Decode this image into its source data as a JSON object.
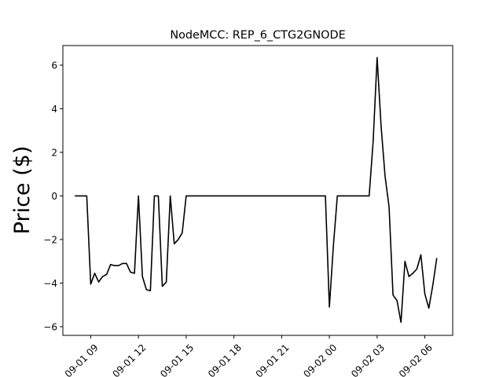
{
  "chart_data": {
    "type": "line",
    "title": "NodeMCC: REP_6_CTG2GNODE",
    "xlabel": "",
    "ylabel": "Price ($)",
    "ylim": [
      -6.4,
      6.9
    ],
    "xlim": [
      "2022-09-01 07:15",
      "2022-09-02 07:45"
    ],
    "grid": false,
    "line_color": "#000000",
    "x_ticks": [
      {
        "x": "2022-09-01 09:00",
        "label": "09-01 09"
      },
      {
        "x": "2022-09-01 12:00",
        "label": "09-01 12"
      },
      {
        "x": "2022-09-01 15:00",
        "label": "09-01 15"
      },
      {
        "x": "2022-09-01 18:00",
        "label": "09-01 18"
      },
      {
        "x": "2022-09-01 21:00",
        "label": "09-01 21"
      },
      {
        "x": "2022-09-02 00:00",
        "label": "09-02 00"
      },
      {
        "x": "2022-09-02 03:00",
        "label": "09-02 03"
      },
      {
        "x": "2022-09-02 06:00",
        "label": "09-02 06"
      }
    ],
    "y_ticks": [
      {
        "y": 6,
        "label": "6"
      },
      {
        "y": 4,
        "label": "4"
      },
      {
        "y": 2,
        "label": "2"
      },
      {
        "y": 0,
        "label": "0"
      },
      {
        "y": -2,
        "label": "−2"
      },
      {
        "y": -4,
        "label": "−4"
      },
      {
        "y": -6,
        "label": "−6"
      }
    ],
    "series": [
      {
        "x": [
          "2022-09-01 08:00",
          "2022-09-01 08:15",
          "2022-09-01 08:30",
          "2022-09-01 08:45",
          "2022-09-01 09:00",
          "2022-09-01 09:15",
          "2022-09-01 09:30",
          "2022-09-01 09:45",
          "2022-09-01 10:00",
          "2022-09-01 10:15",
          "2022-09-01 10:30",
          "2022-09-01 10:45",
          "2022-09-01 11:00",
          "2022-09-01 11:15",
          "2022-09-01 11:30",
          "2022-09-01 11:45",
          "2022-09-01 12:00",
          "2022-09-01 12:15",
          "2022-09-01 12:30",
          "2022-09-01 12:45",
          "2022-09-01 13:00",
          "2022-09-01 13:15",
          "2022-09-01 13:30",
          "2022-09-01 13:45",
          "2022-09-01 14:00",
          "2022-09-01 14:15",
          "2022-09-01 14:30",
          "2022-09-01 14:45",
          "2022-09-01 15:00",
          "2022-09-01 16:00",
          "2022-09-01 17:00",
          "2022-09-01 18:00",
          "2022-09-01 19:00",
          "2022-09-01 20:00",
          "2022-09-01 21:00",
          "2022-09-01 22:00",
          "2022-09-01 23:00",
          "2022-09-01 23:45",
          "2022-09-02 00:00",
          "2022-09-02 00:15",
          "2022-09-02 00:30",
          "2022-09-02 00:45",
          "2022-09-02 01:00",
          "2022-09-02 01:15",
          "2022-09-02 01:30",
          "2022-09-02 01:45",
          "2022-09-02 02:00",
          "2022-09-02 02:15",
          "2022-09-02 02:30",
          "2022-09-02 02:45",
          "2022-09-02 03:00",
          "2022-09-02 03:15",
          "2022-09-02 03:30",
          "2022-09-02 03:45",
          "2022-09-02 04:00",
          "2022-09-02 04:15",
          "2022-09-02 04:30",
          "2022-09-02 04:45",
          "2022-09-02 05:00",
          "2022-09-02 05:15",
          "2022-09-02 05:30",
          "2022-09-02 05:45",
          "2022-09-02 06:00",
          "2022-09-02 06:15",
          "2022-09-02 06:30",
          "2022-09-02 06:45"
        ],
        "y": [
          0,
          0,
          0,
          0,
          -4.05,
          -3.55,
          -3.95,
          -3.7,
          -3.6,
          -3.15,
          -3.2,
          -3.2,
          -3.1,
          -3.1,
          -3.5,
          -3.55,
          0,
          -3.7,
          -4.3,
          -4.35,
          0,
          0,
          -4.15,
          -3.95,
          0,
          -2.2,
          -2.0,
          -1.7,
          0,
          0,
          0,
          0,
          0,
          0,
          0,
          0,
          0,
          0,
          -5.1,
          -2.3,
          0,
          0,
          0,
          0,
          0,
          0,
          0,
          0,
          0,
          2.5,
          6.35,
          3.2,
          0.9,
          -0.5,
          -4.55,
          -4.8,
          -5.8,
          -3.0,
          -3.7,
          -3.55,
          -3.35,
          -2.7,
          -4.5,
          -5.15,
          -4.1,
          -2.85
        ]
      }
    ]
  }
}
